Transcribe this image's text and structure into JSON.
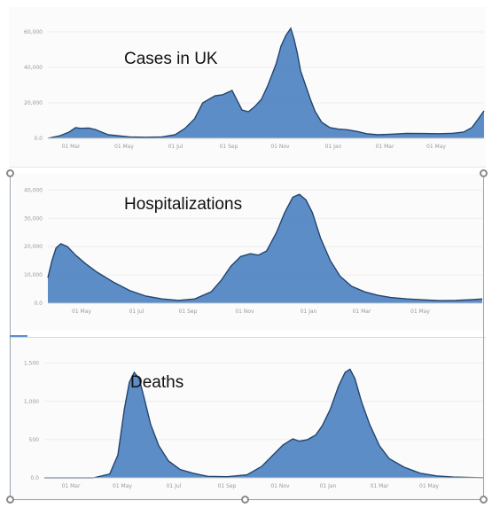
{
  "chart_data": [
    {
      "type": "area",
      "title": "Cases in UK",
      "x_ticks": [
        "01 Mar",
        "01 May",
        "01 Jul",
        "01 Sep",
        "01 Nov",
        "01 Jan",
        "01 Mar",
        "01 May"
      ],
      "y_ticks": [
        "0.0",
        "20,000",
        "40,000",
        "60,000"
      ],
      "ylim": [
        0,
        65000
      ],
      "x": [
        0,
        15,
        26,
        34,
        40,
        50,
        58,
        74,
        100,
        120,
        140,
        156,
        168,
        180,
        190,
        205,
        214,
        226,
        238,
        246,
        254,
        262,
        270,
        280,
        286,
        292,
        298,
        302,
        306,
        310,
        316,
        322,
        328,
        336,
        346,
        356,
        368,
        380,
        392,
        405,
        420,
        440,
        460,
        480,
        496,
        510,
        520,
        528,
        535
      ],
      "y": [
        0,
        1500,
        3500,
        6000,
        5600,
        5800,
        5000,
        2000,
        800,
        600,
        800,
        2000,
        5500,
        11000,
        20000,
        24000,
        24500,
        27000,
        16000,
        15000,
        18000,
        22000,
        30000,
        42000,
        52000,
        58000,
        62000,
        56000,
        48000,
        38000,
        30000,
        22000,
        15000,
        9000,
        6000,
        5200,
        4800,
        3800,
        2500,
        2000,
        2300,
        2800,
        2700,
        2600,
        2800,
        3500,
        6000,
        11000,
        15500
      ],
      "color": "#4f83c2",
      "line_color": "#22456e"
    },
    {
      "type": "area",
      "title": "Hospitalizations",
      "x_ticks": [
        "01 May",
        "01 Jul",
        "01 Sep",
        "01 Nov",
        "01 Jan",
        "01 Mar",
        "01 May"
      ],
      "y_ticks": [
        "0.0",
        "10,000",
        "20,000",
        "30,000",
        "40,000"
      ],
      "ylim": [
        0,
        42000
      ],
      "x": [
        0,
        5,
        10,
        16,
        24,
        34,
        46,
        60,
        80,
        100,
        120,
        140,
        160,
        180,
        200,
        212,
        224,
        236,
        248,
        258,
        268,
        280,
        290,
        300,
        308,
        316,
        324,
        334,
        346,
        358,
        372,
        388,
        404,
        420,
        440,
        460,
        480,
        500,
        520,
        532
      ],
      "y": [
        9000,
        15000,
        19500,
        21000,
        20000,
        17000,
        14000,
        11000,
        7500,
        4500,
        2500,
        1500,
        1000,
        1500,
        4000,
        8000,
        13000,
        16500,
        17500,
        17000,
        18500,
        25000,
        32000,
        37500,
        38500,
        36500,
        32000,
        23000,
        15000,
        9500,
        6000,
        4000,
        2800,
        2000,
        1500,
        1200,
        900,
        1000,
        1300,
        1500
      ],
      "color": "#4f83c2",
      "line_color": "#22456e"
    },
    {
      "type": "area",
      "title": "Deaths",
      "x_ticks": [
        "01 Mar",
        "01 May",
        "01 Jul",
        "01 Sep",
        "01 Nov",
        "01 Jan",
        "01 Mar",
        "01 May"
      ],
      "y_ticks": [
        "0.0",
        "500",
        "1,000",
        "1,500"
      ],
      "ylim": [
        0,
        1600
      ],
      "x": [
        0,
        30,
        60,
        80,
        90,
        98,
        104,
        110,
        116,
        122,
        130,
        140,
        152,
        166,
        182,
        200,
        224,
        248,
        266,
        280,
        292,
        304,
        312,
        322,
        332,
        340,
        350,
        360,
        368,
        374,
        380,
        388,
        398,
        410,
        422,
        440,
        460,
        480,
        500,
        538
      ],
      "y": [
        0,
        0,
        0,
        50,
        300,
        900,
        1250,
        1380,
        1300,
        1050,
        700,
        420,
        220,
        110,
        60,
        20,
        15,
        40,
        150,
        300,
        430,
        510,
        480,
        500,
        560,
        680,
        900,
        1200,
        1380,
        1420,
        1300,
        1000,
        700,
        420,
        250,
        140,
        60,
        25,
        10,
        0
      ],
      "color": "#4f83c2",
      "line_color": "#22456e"
    }
  ]
}
